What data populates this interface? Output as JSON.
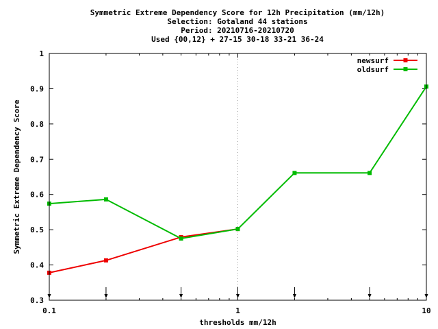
{
  "chart_data": {
    "type": "line",
    "title_lines": [
      "Symmetric Extreme Dependency Score  for 12h Precipitation (mm/12h)",
      "Selection: Gotaland     44 stations",
      "Period: 20210716-20210720",
      "Used {00,12} + 27-15 30-18 33-21 36-24"
    ],
    "xlabel": "thresholds mm/12h",
    "ylabel": "Symmetric Extreme Dependency Score",
    "x_scale": "log",
    "xlim": [
      0.1,
      10
    ],
    "ylim": [
      0.3,
      1.0
    ],
    "x_ticks": [
      0.1,
      1,
      10
    ],
    "x_tick_labels": [
      "0.1",
      "1",
      "10"
    ],
    "y_ticks": [
      0.3,
      0.4,
      0.5,
      0.6,
      0.7,
      0.8,
      0.9,
      1.0
    ],
    "y_tick_labels": [
      "0.3",
      "0.4",
      "0.5",
      "0.6",
      "0.7",
      "0.8",
      "0.9",
      "1"
    ],
    "grid": "dotted at x=1",
    "legend_position": "top-right",
    "threshold_markers": [
      0.1,
      0.2,
      0.5,
      1,
      2,
      5,
      10
    ],
    "series": [
      {
        "name": "newsurf",
        "color": "#ee0000",
        "x": [
          0.1,
          0.2,
          0.5,
          1
        ],
        "y": [
          0.378,
          0.413,
          0.479,
          0.502
        ]
      },
      {
        "name": "oldsurf",
        "color": "#00bb00",
        "x": [
          0.1,
          0.2,
          0.5,
          1,
          2,
          5,
          10
        ],
        "y": [
          0.574,
          0.586,
          0.475,
          0.502,
          0.661,
          0.661,
          0.906
        ]
      }
    ]
  }
}
